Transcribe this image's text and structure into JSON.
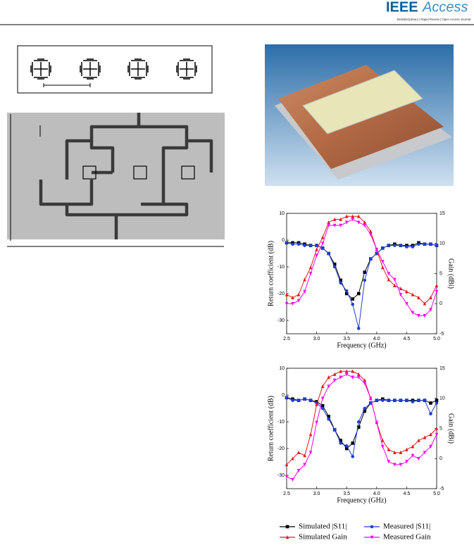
{
  "header": {
    "logo_bold": "IEEE",
    "logo_light": "Access",
    "tagline": "Multidisciplinary | Rapid Review | Open Access Journal"
  },
  "chart_data": [
    {
      "type": "line",
      "x_label": "Frequency (GHz)",
      "y_label": "Return coefficient (dB)",
      "y2_label": "Gain (dBi)",
      "x": [
        2.5,
        2.6,
        2.7,
        2.8,
        2.9,
        3.0,
        3.1,
        3.2,
        3.3,
        3.4,
        3.5,
        3.6,
        3.7,
        3.8,
        3.9,
        4.0,
        4.1,
        4.2,
        4.3,
        4.4,
        4.5,
        4.6,
        4.7,
        4.8,
        4.9,
        5.0
      ],
      "xlim": [
        2.5,
        5.0
      ],
      "xticks": [
        2.5,
        {
          "value": 3,
          "label": "3.0"
        },
        3.5,
        {
          "value": 4,
          "label": "4.0"
        },
        4.5,
        {
          "value": 5,
          "label": "5.0"
        }
      ],
      "ylim": [
        -35,
        10
      ],
      "yticks": [
        -30,
        -20,
        -10,
        0,
        10
      ],
      "y2lim": [
        -5,
        15
      ],
      "y2ticks": [
        -5,
        0,
        5,
        10,
        15
      ],
      "series": [
        {
          "name": "Simulated |S11|",
          "color": "#000000",
          "marker": "square",
          "values": [
            -1,
            -1,
            -1,
            -1.5,
            -2,
            -2,
            -3,
            -5,
            -9,
            -15,
            -20,
            -22,
            -20,
            -12,
            -7,
            -5,
            -3,
            -2,
            -1.5,
            -2,
            -2,
            -2,
            -1,
            -1.5,
            -1.5,
            -2
          ]
        },
        {
          "name": "Measured |S11|",
          "color": "#1f3fd0",
          "marker": "circle",
          "values": [
            -1,
            -1.5,
            -1.5,
            -2,
            -2,
            -2,
            -3,
            -5,
            -10,
            -16,
            -19,
            -24,
            -33,
            -15,
            -7,
            -5,
            -3,
            -2,
            -2,
            -2,
            -2.5,
            -2.5,
            -1.5,
            -1.5,
            -1.5,
            -2
          ]
        },
        {
          "name": "Simulated Gain",
          "color": "#e31a1c",
          "marker": "up",
          "axis": "y2",
          "values": [
            1.5,
            1,
            1.5,
            4,
            6,
            9,
            11,
            13.5,
            14,
            14,
            14.5,
            14.5,
            14.5,
            13.5,
            12,
            9,
            6,
            4,
            3,
            2.5,
            2,
            1.5,
            1,
            0,
            1,
            3
          ]
        },
        {
          "name": "Measured Gain",
          "color": "#ff00ff",
          "marker": "down",
          "axis": "y2",
          "values": [
            0,
            0,
            0.5,
            2,
            5,
            8,
            10,
            13,
            13,
            13,
            13.5,
            14,
            13.5,
            13,
            11.5,
            9,
            7,
            5,
            4,
            1.5,
            0,
            -1.5,
            -2,
            -2,
            -1,
            2
          ]
        }
      ]
    },
    {
      "type": "line",
      "x_label": "Frequency (GHz)",
      "y_label": "Return coefficient (dB)",
      "y2_label": "Gain (dBi)",
      "x": [
        2.5,
        2.6,
        2.7,
        2.8,
        2.9,
        3.0,
        3.1,
        3.2,
        3.3,
        3.4,
        3.5,
        3.6,
        3.7,
        3.8,
        3.9,
        4.0,
        4.1,
        4.2,
        4.3,
        4.4,
        4.5,
        4.6,
        4.7,
        4.8,
        4.9,
        5.0
      ],
      "xlim": [
        2.5,
        5.0
      ],
      "xticks": [
        2.5,
        {
          "value": 3,
          "label": "3.0"
        },
        3.5,
        {
          "value": 4,
          "label": "4.0"
        },
        4.5,
        {
          "value": 5,
          "label": "5.0"
        }
      ],
      "ylim": [
        -35,
        10
      ],
      "yticks": [
        -30,
        -20,
        -10,
        0,
        10
      ],
      "y2lim": [
        -5,
        15
      ],
      "y2ticks": [
        -5,
        0,
        5,
        10,
        15
      ],
      "series": [
        {
          "name": "Simulated |S11|",
          "color": "#000000",
          "marker": "square",
          "values": [
            -1,
            -1.5,
            -2,
            -1.5,
            -2,
            -2.5,
            -4,
            -8,
            -13,
            -17,
            -20,
            -18,
            -12,
            -6,
            -3,
            -2,
            -1.5,
            -2,
            -2,
            -2,
            -2,
            -2,
            -2,
            -2,
            -3,
            -2
          ]
        },
        {
          "name": "Measured |S11|",
          "color": "#1f3fd0",
          "marker": "circle",
          "values": [
            -1,
            -2,
            -2,
            -1.5,
            -2,
            -3,
            -5,
            -9,
            -13,
            -18,
            -19,
            -23,
            -10,
            -5,
            -3,
            -2,
            -2,
            -2,
            -2,
            -2,
            -2,
            -2.5,
            -2,
            -2,
            -7,
            -3
          ]
        },
        {
          "name": "Simulated Gain",
          "color": "#e31a1c",
          "marker": "up",
          "axis": "y2",
          "values": [
            -1,
            0,
            1,
            0.5,
            4,
            9,
            12,
            13.5,
            14,
            14.5,
            14.5,
            14.5,
            14,
            13,
            10,
            6,
            3,
            1.5,
            1,
            1,
            1.5,
            2,
            3,
            3.5,
            4,
            5
          ]
        },
        {
          "name": "Measured Gain",
          "color": "#ff00ff",
          "marker": "down",
          "axis": "y2",
          "values": [
            -3,
            -3.5,
            -2,
            -1,
            1,
            6,
            10,
            12,
            13,
            13.5,
            14,
            13.5,
            13.5,
            12.5,
            10,
            6,
            2,
            -0.5,
            -1,
            -1,
            -0.5,
            0.5,
            0,
            1,
            2,
            4
          ]
        }
      ]
    }
  ]
}
